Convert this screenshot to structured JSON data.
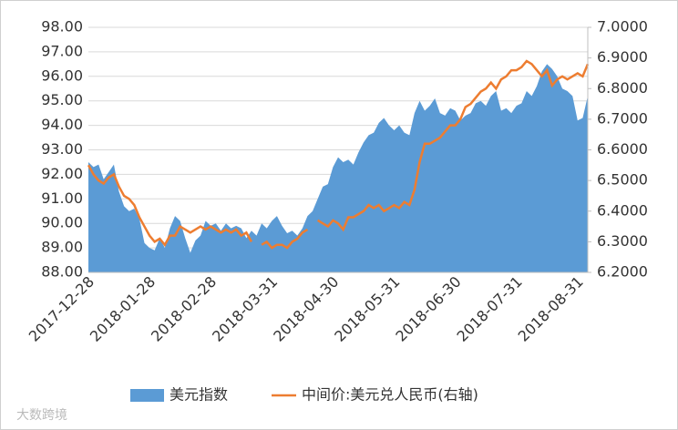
{
  "chart_data": {
    "type": "area-line",
    "categories": [
      "2017-12-28",
      null,
      null,
      null,
      null,
      null,
      null,
      null,
      null,
      null,
      null,
      null,
      "2018-01-28",
      null,
      null,
      null,
      null,
      null,
      null,
      null,
      null,
      null,
      null,
      null,
      "2018-02-28",
      null,
      null,
      null,
      null,
      null,
      null,
      null,
      null,
      null,
      null,
      null,
      "2018-03-31",
      null,
      null,
      null,
      null,
      null,
      null,
      null,
      null,
      null,
      null,
      null,
      "2018-04-30",
      null,
      null,
      null,
      null,
      null,
      null,
      null,
      null,
      null,
      null,
      null,
      "2018-05-31",
      null,
      null,
      null,
      null,
      null,
      null,
      null,
      null,
      null,
      null,
      null,
      "2018-06-30",
      null,
      null,
      null,
      null,
      null,
      null,
      null,
      null,
      null,
      null,
      null,
      "2018-07-31",
      null,
      null,
      null,
      null,
      null,
      null,
      null,
      null,
      null,
      null,
      null,
      "2018-08-31",
      null,
      null
    ],
    "series": [
      {
        "name": "美元指数",
        "color": "#5b9bd5",
        "kind": "area",
        "axis": "y",
        "values": [
          92.5,
          92.3,
          92.4,
          91.8,
          92.1,
          92.4,
          91.3,
          90.7,
          90.5,
          90.6,
          90.2,
          89.2,
          89.0,
          88.9,
          89.4,
          89.0,
          89.8,
          90.3,
          90.1,
          89.4,
          88.8,
          89.3,
          89.5,
          90.1,
          89.9,
          90.0,
          89.7,
          90.0,
          89.8,
          89.9,
          89.8,
          89.4,
          89.7,
          89.5,
          90.0,
          89.8,
          90.1,
          90.3,
          89.9,
          89.6,
          89.7,
          89.5,
          89.8,
          90.3,
          90.5,
          91.0,
          91.5,
          91.6,
          92.3,
          92.7,
          92.5,
          92.6,
          92.4,
          92.9,
          93.3,
          93.6,
          93.7,
          94.1,
          94.3,
          94.0,
          93.8,
          94.0,
          93.7,
          93.6,
          94.5,
          95.0,
          94.6,
          94.8,
          95.1,
          94.5,
          94.4,
          94.7,
          94.6,
          94.2,
          94.4,
          94.5,
          94.9,
          95.0,
          94.8,
          95.2,
          95.4,
          94.6,
          94.7,
          94.5,
          94.8,
          94.9,
          95.4,
          95.2,
          95.6,
          96.2,
          96.5,
          96.3,
          96.0,
          95.5,
          95.4,
          95.2,
          94.2,
          94.3,
          95.2
        ]
      },
      {
        "name": "中间价:美元兑人民币(右轴)",
        "color": "#ed7d31",
        "kind": "line",
        "axis": "y2",
        "values": [
          6.55,
          6.52,
          6.5,
          6.49,
          6.51,
          6.52,
          6.48,
          6.45,
          6.44,
          6.42,
          6.38,
          6.35,
          6.32,
          6.3,
          6.31,
          6.29,
          6.32,
          6.32,
          6.35,
          6.34,
          6.33,
          6.34,
          6.35,
          6.34,
          6.35,
          6.34,
          6.33,
          6.34,
          6.33,
          6.34,
          6.32,
          6.33,
          6.3,
          null,
          6.29,
          6.3,
          6.28,
          6.29,
          6.29,
          6.28,
          6.3,
          6.31,
          6.33,
          6.34,
          null,
          6.37,
          6.36,
          6.35,
          6.37,
          6.36,
          6.34,
          6.38,
          6.38,
          6.39,
          6.4,
          6.42,
          6.41,
          6.42,
          6.4,
          6.41,
          6.42,
          6.41,
          6.43,
          6.42,
          6.47,
          6.56,
          6.62,
          6.62,
          6.63,
          6.64,
          6.66,
          6.68,
          6.68,
          6.7,
          6.74,
          6.75,
          6.77,
          6.79,
          6.8,
          6.82,
          6.8,
          6.83,
          6.84,
          6.86,
          6.86,
          6.87,
          6.89,
          6.88,
          6.86,
          6.84,
          6.86,
          6.81,
          6.83,
          6.84,
          6.83,
          6.84,
          6.85,
          6.84,
          6.88
        ]
      }
    ],
    "ylim": [
      88,
      98
    ],
    "yticks": [
      {
        "value": 88,
        "label": "88.00"
      },
      {
        "value": 89,
        "label": "89.00"
      },
      {
        "value": 90,
        "label": "90.00"
      },
      {
        "value": 91,
        "label": "91.00"
      },
      {
        "value": 92,
        "label": "92.00"
      },
      {
        "value": 93,
        "label": "93.00"
      },
      {
        "value": 94,
        "label": "94.00"
      },
      {
        "value": 95,
        "label": "95.00"
      },
      {
        "value": 96,
        "label": "96.00"
      },
      {
        "value": 97,
        "label": "97.00"
      },
      {
        "value": 98,
        "label": "98.00"
      }
    ],
    "y2lim": [
      6.2,
      7.0
    ],
    "y2ticks": [
      {
        "value": 6.2,
        "label": "6.2000"
      },
      {
        "value": 6.3,
        "label": "6.3000"
      },
      {
        "value": 6.4,
        "label": "6.4000"
      },
      {
        "value": 6.5,
        "label": "6.5000"
      },
      {
        "value": 6.6,
        "label": "6.6000"
      },
      {
        "value": 6.7,
        "label": "6.7000"
      },
      {
        "value": 6.8,
        "label": "6.8000"
      },
      {
        "value": 6.9,
        "label": "6.9000"
      },
      {
        "value": 7.0,
        "label": "7.0000"
      }
    ],
    "grid": true,
    "legend": "bottom",
    "watermark": "大数跨境"
  }
}
